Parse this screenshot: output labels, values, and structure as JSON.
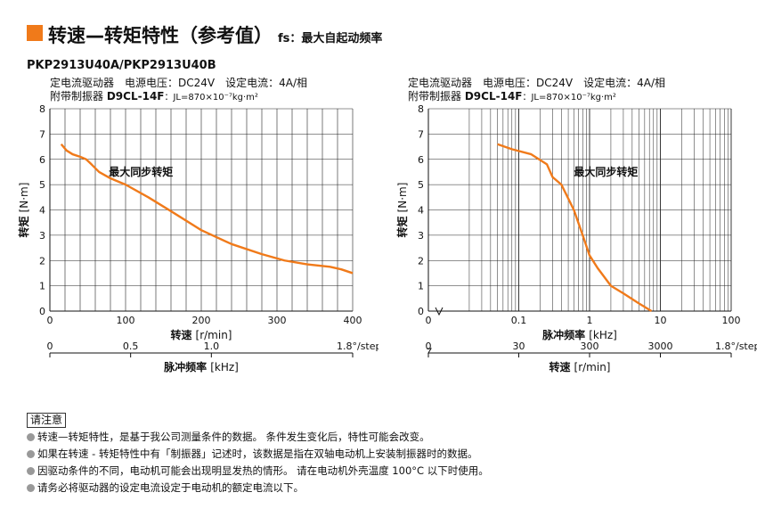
{
  "header": {
    "title": "转速—转矩特性（参考值）",
    "subtitle": "fs：最大自起动频率",
    "accent_color": "#f07a1a"
  },
  "model": "PKP2913U40A/PKP2913U40B",
  "conditions": {
    "line1": "定电流驱动器　电源电压：DC24V　设定电流：4A/相",
    "damper_label": "附带制振器",
    "damper_model": "D9CL-14F",
    "inertia": "：JL=870×10⁻⁷kg·m²"
  },
  "chart_data": [
    {
      "type": "line",
      "xlabel": "转速",
      "xunit": "[r/min]",
      "ylabel": "转矩",
      "yunit": "[N·m]",
      "xlim": [
        0,
        400
      ],
      "ylim": [
        0,
        8
      ],
      "x_ticks": [
        0,
        100,
        200,
        300,
        400
      ],
      "x_tick_labels": [
        "0",
        "100",
        "200",
        "300",
        "400"
      ],
      "y_ticks": [
        0,
        1,
        2,
        3,
        4,
        5,
        6,
        7,
        8
      ],
      "y_tick_labels": [
        "0",
        "1",
        "2",
        "3",
        "4",
        "5",
        "6",
        "7",
        "8"
      ],
      "grid": true,
      "secondary_axis": {
        "label": "脉冲频率",
        "unit": "[kHz]",
        "ticks": [
          0,
          0.5,
          1.0,
          1.875
        ],
        "tick_labels": [
          "0",
          "0.5",
          "1.0",
          "1.8°/step"
        ]
      },
      "series": [
        {
          "name": "最大同步转矩",
          "color": "#f07a1a",
          "x": [
            15,
            22,
            30,
            40,
            48,
            55,
            65,
            80,
            100,
            130,
            160,
            200,
            240,
            280,
            310,
            340,
            370,
            385,
            400
          ],
          "y": [
            6.6,
            6.35,
            6.2,
            6.1,
            6.0,
            5.8,
            5.5,
            5.25,
            5.0,
            4.5,
            3.95,
            3.2,
            2.65,
            2.25,
            2.0,
            1.85,
            1.75,
            1.65,
            1.5
          ]
        }
      ]
    },
    {
      "type": "line",
      "xscale": "log",
      "xlabel": "脉冲频率",
      "xunit": "[kHz]",
      "ylabel": "转矩",
      "yunit": "[N·m]",
      "xlim": [
        0.01,
        100
      ],
      "ylim": [
        0,
        8
      ],
      "x_ticks": [
        0.1,
        1,
        10,
        100
      ],
      "x_tick_labels": [
        "0.1",
        "1",
        "10",
        "100"
      ],
      "x_zero_label": "0",
      "y_ticks": [
        0,
        1,
        2,
        3,
        4,
        5,
        6,
        7,
        8
      ],
      "y_tick_labels": [
        "0",
        "1",
        "2",
        "3",
        "4",
        "5",
        "6",
        "7",
        "8"
      ],
      "grid": true,
      "secondary_axis": {
        "label": "转速",
        "unit": "[r/min]",
        "ticks": [
          0.1,
          1,
          10,
          100
        ],
        "tick_labels": [
          "30",
          "300",
          "3000",
          "1.8°/step"
        ],
        "zero_label": "0"
      },
      "series": [
        {
          "name": "最大同步转矩",
          "color": "#f07a1a",
          "x": [
            0.05,
            0.08,
            0.15,
            0.25,
            0.3,
            0.4,
            0.6,
            0.8,
            1.0,
            1.3,
            2.0,
            3.0,
            5.0,
            7.5
          ],
          "y": [
            6.6,
            6.4,
            6.2,
            5.8,
            5.3,
            5.0,
            4.0,
            3.0,
            2.2,
            1.7,
            1.0,
            0.7,
            0.3,
            0.0
          ]
        }
      ]
    }
  ],
  "notes": {
    "heading": "请注意",
    "items": [
      "转速—转矩特性，是基于我公司测量条件的数据。 条件发生变化后，特性可能会改变。",
      "如果在转速 - 转矩特性中有「制振器」记述时，该数据是指在双轴电动机上安装制振器时的数据。",
      "因驱动条件的不同，电动机可能会出现明显发热的情形。 请在电动机外壳温度 100°C 以下时使用。",
      "请务必将驱动器的设定电流设定于电动机的额定电流以下。"
    ]
  }
}
